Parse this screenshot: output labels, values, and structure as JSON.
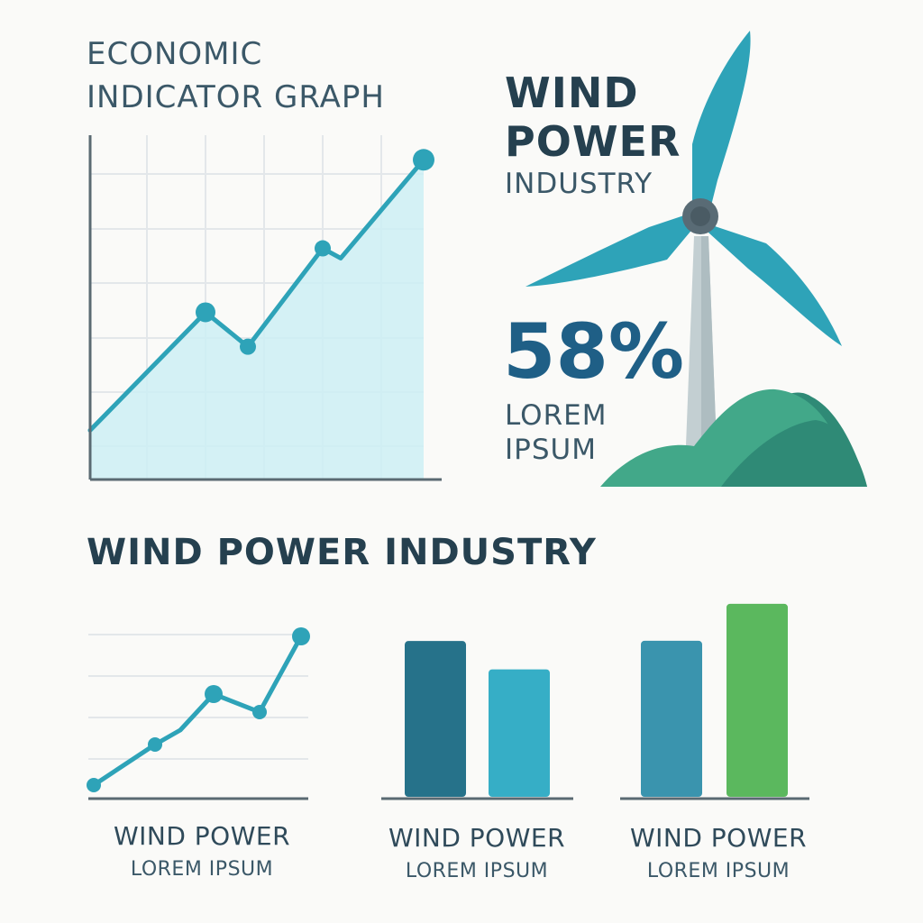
{
  "header": {
    "chart_title": [
      "ECONOMIC",
      "INDICATOR GRAPH"
    ]
  },
  "hero": {
    "title": [
      "WIND",
      "POWER"
    ],
    "subtitle": "INDUSTRY",
    "stat_value": "58%",
    "stat_label": [
      "LOREM",
      "IPSUM"
    ]
  },
  "section": {
    "title": "WIND POWER INDUSTRY"
  },
  "captions": [
    {
      "title": "WIND POWER",
      "subtitle": "LOREM IPSUM"
    },
    {
      "title": "WIND POWER",
      "subtitle": "LOREM IPSUM"
    },
    {
      "title": "WIND POWER",
      "subtitle": "LOREM IPSUM"
    }
  ],
  "colors": {
    "teal": "#2ea3b8",
    "teal_fill": "#cdeff4",
    "navy_bar": "#26728a",
    "mid_bar": "#3a94ae",
    "light_bar": "#36aec6",
    "green_bar": "#5bb85e",
    "hill_light": "#42a889",
    "hill_dark": "#2f8a76",
    "axis": "#5a6a72",
    "grid": "#e3e7ea"
  },
  "chart_data": [
    {
      "type": "area",
      "title": "ECONOMIC INDICATOR GRAPH",
      "x": [
        0,
        1,
        2,
        3,
        4,
        5
      ],
      "values": [
        1.0,
        3.4,
        2.7,
        4.7,
        4.5,
        6.5
      ],
      "markers": [
        false,
        true,
        true,
        true,
        false,
        true
      ],
      "ylim": [
        0,
        7
      ],
      "xlim": [
        0,
        5.75
      ],
      "grid": true
    },
    {
      "type": "line",
      "x": [
        0,
        1,
        2,
        3,
        4,
        5
      ],
      "values": [
        0.3,
        1.8,
        2.2,
        3.3,
        2.9,
        5.0
      ],
      "markers": [
        true,
        true,
        false,
        true,
        true,
        true
      ],
      "ylim": [
        0,
        5.5
      ],
      "grid": true
    },
    {
      "type": "bar",
      "categories": [
        "A",
        "B"
      ],
      "values": [
        5.5,
        4.5
      ],
      "ylim": [
        0,
        7
      ]
    },
    {
      "type": "bar",
      "categories": [
        "A",
        "B"
      ],
      "values": [
        5.9,
        7.3
      ],
      "ylim": [
        0,
        7.5
      ]
    }
  ]
}
